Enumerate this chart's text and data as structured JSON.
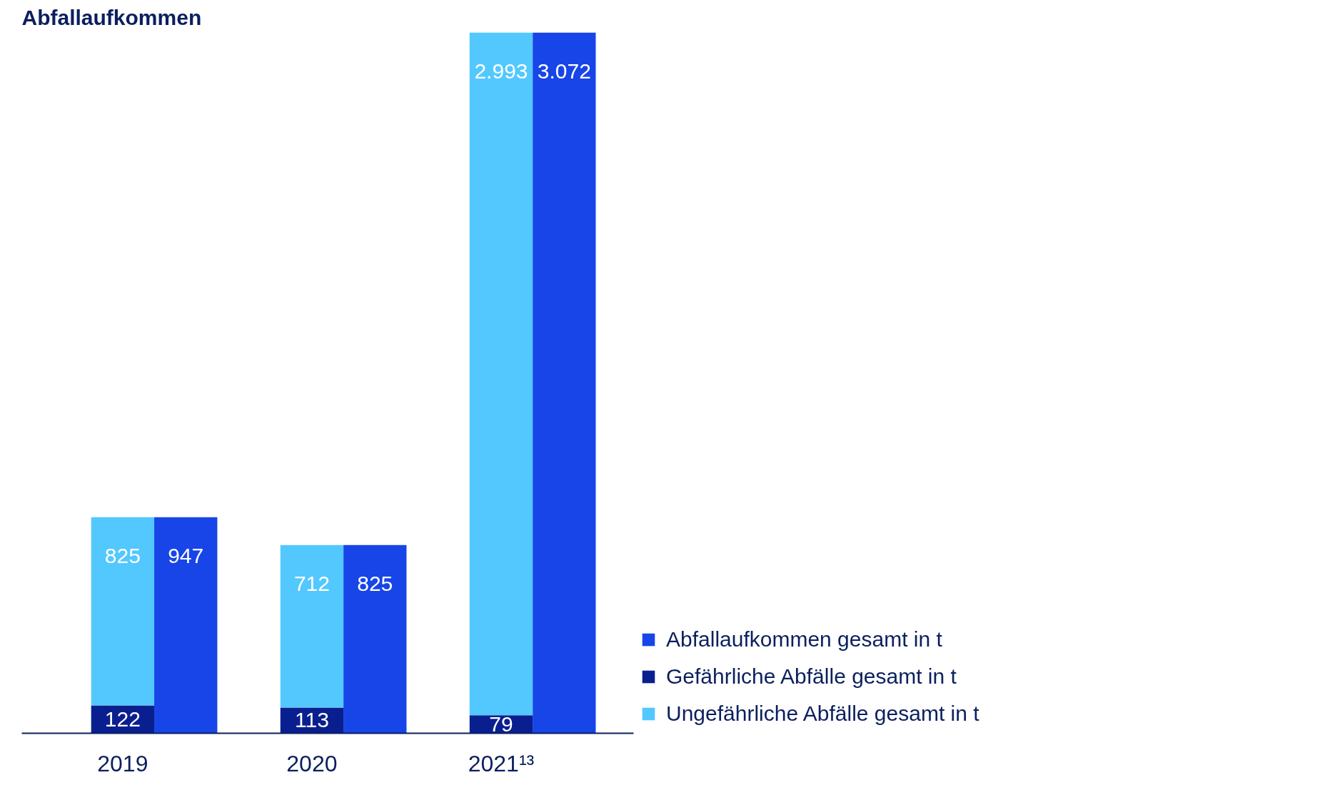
{
  "chart_data": {
    "type": "bar",
    "title": "Abfallaufkommen",
    "stacked": true,
    "categories": [
      "2019",
      null,
      null,
      "2020",
      null,
      null,
      "2021¹³",
      null
    ],
    "series": [
      {
        "name": "Abfallaufkommen gesamt in t",
        "color": "#1745e8",
        "values": [
          null,
          947,
          null,
          null,
          825,
          null,
          null,
          3072
        ],
        "value_labels": [
          null,
          "947",
          null,
          null,
          "825",
          null,
          null,
          "3.072"
        ]
      },
      {
        "name": "Gefährliche Abfälle gesamt in t",
        "color": "#0a1f8f",
        "values": [
          122,
          null,
          null,
          113,
          null,
          null,
          79,
          null
        ],
        "value_labels": [
          "122",
          null,
          null,
          "113",
          null,
          null,
          "79",
          null
        ]
      },
      {
        "name": "Ungefährliche Abfälle gesamt in t",
        "color": "#52c8ff",
        "values": [
          825,
          null,
          null,
          712,
          null,
          null,
          2993,
          null
        ],
        "value_labels": [
          "825",
          null,
          null,
          "712",
          null,
          null,
          "2.993",
          null
        ]
      }
    ],
    "legend": "right",
    "grid": false
  }
}
